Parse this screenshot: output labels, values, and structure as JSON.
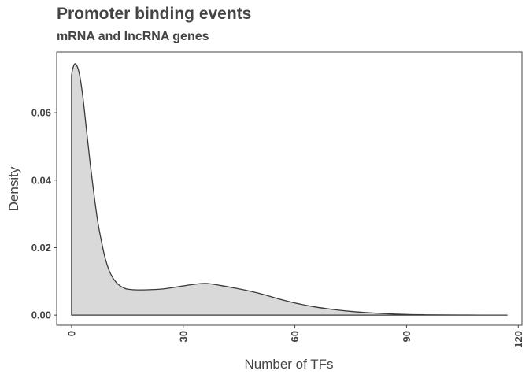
{
  "chart_data": {
    "type": "area",
    "title": "Promoter binding events",
    "subtitle": "mRNA and lncRNA genes",
    "xlabel": "Number of TFs",
    "ylabel": "Density",
    "xlim": [
      -4,
      121
    ],
    "ylim": [
      -0.003,
      0.078
    ],
    "xticks": [
      "0",
      "30",
      "60",
      "90",
      "120"
    ],
    "yticks": [
      "0.00",
      "0.02",
      "0.04",
      "0.06"
    ],
    "grid": false,
    "colors": {
      "fill": "#d9d9d9",
      "line": "#3a3a3a",
      "text": "#444444"
    },
    "series": [
      {
        "x": [
          0,
          0.3,
          1,
          2,
          3,
          4,
          5,
          6,
          7,
          8,
          9,
          10,
          11,
          12,
          13,
          14,
          15,
          17,
          20,
          24,
          28,
          32,
          36,
          40,
          44,
          48,
          52,
          56,
          60,
          65,
          70,
          75,
          80,
          85,
          90,
          95,
          100,
          105,
          110,
          117
        ],
        "y": [
          0.071,
          0.073,
          0.0745,
          0.072,
          0.065,
          0.055,
          0.045,
          0.036,
          0.028,
          0.022,
          0.017,
          0.0135,
          0.0112,
          0.0097,
          0.0087,
          0.0081,
          0.0077,
          0.0075,
          0.0075,
          0.0077,
          0.0083,
          0.009,
          0.0094,
          0.0088,
          0.008,
          0.0071,
          0.006,
          0.0047,
          0.0036,
          0.0025,
          0.0017,
          0.0011,
          0.0007,
          0.0004,
          0.0002,
          0.0001,
          5e-05,
          2e-05,
          1e-05,
          0
        ]
      }
    ]
  }
}
